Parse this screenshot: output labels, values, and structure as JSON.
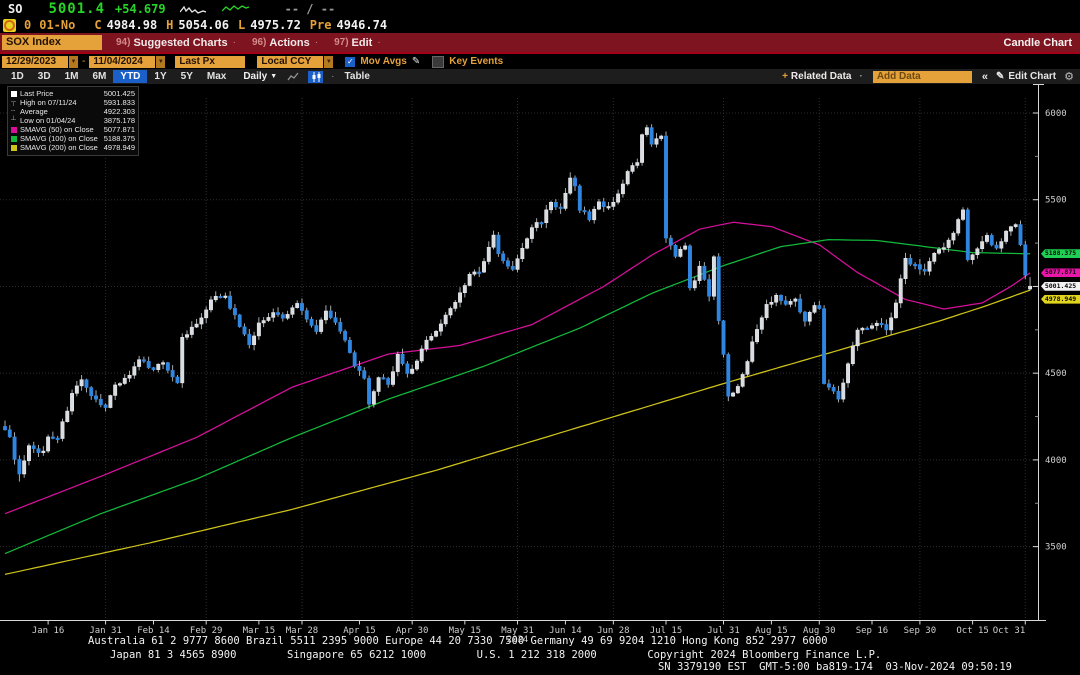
{
  "topbar": {
    "ticker": "SO",
    "price": "5001.4",
    "change": "+54.679",
    "na": "-- / --",
    "session": "0",
    "date_short": "01-No",
    "ohlc": [
      {
        "k": "C",
        "v": "4984.98"
      },
      {
        "k": "H",
        "v": "5054.06"
      },
      {
        "k": "L",
        "v": "4975.72"
      },
      {
        "k": "Pre",
        "v": "4946.74"
      }
    ],
    "spark_white": [
      [
        0,
        9
      ],
      [
        4,
        4
      ],
      [
        6,
        8
      ],
      [
        9,
        5
      ],
      [
        12,
        9
      ],
      [
        15,
        7
      ],
      [
        18,
        10
      ],
      [
        23,
        8
      ],
      [
        26,
        9
      ]
    ],
    "spark_green": [
      [
        0,
        8
      ],
      [
        4,
        4
      ],
      [
        8,
        7
      ],
      [
        12,
        3
      ],
      [
        16,
        6
      ],
      [
        20,
        3
      ],
      [
        24,
        5
      ],
      [
        27,
        4
      ]
    ]
  },
  "menubar": {
    "security": "SOX Index",
    "items": [
      {
        "num": "94)",
        "label": "Suggested Charts"
      },
      {
        "num": "96)",
        "label": "Actions"
      },
      {
        "num": "97)",
        "label": "Edit"
      }
    ],
    "right": "Candle Chart"
  },
  "toolbar": {
    "date_from": "12/29/2023",
    "separator": "-",
    "date_to": "11/04/2024",
    "price_mode": "Last Px",
    "currency": "Local CCY",
    "mov_avgs": "Mov Avgs",
    "key_events": "Key Events"
  },
  "periodbar": {
    "periods": [
      "1D",
      "3D",
      "1M",
      "6M",
      "YTD",
      "1Y",
      "5Y",
      "Max"
    ],
    "selected": "YTD",
    "frequency": "Daily",
    "table": "Table",
    "related_data": "Related Data",
    "add_data": "Add Data",
    "collapse": "«",
    "edit_chart": "Edit Chart"
  },
  "legend": {
    "items": [
      {
        "marker": "square",
        "swatch": "#ffffff",
        "label": "Last Price",
        "value": "5001.425"
      },
      {
        "marker": "high",
        "swatch": "",
        "label": "High on 07/11/24",
        "value": "5931.833"
      },
      {
        "marker": "avg",
        "swatch": "",
        "label": "Average",
        "value": "4922.303"
      },
      {
        "marker": "low",
        "swatch": "",
        "label": "Low on 01/04/24",
        "value": "3875.178"
      },
      {
        "marker": "square",
        "swatch": "#d6109b",
        "label": "SMAVG (50)  on Close",
        "value": "5077.871"
      },
      {
        "marker": "square",
        "swatch": "#12b93a",
        "label": "SMAVG (100)  on Close",
        "value": "5188.375"
      },
      {
        "marker": "square",
        "swatch": "#cfc419",
        "label": "SMAVG (200)  on Close",
        "value": "4978.949"
      }
    ]
  },
  "chart_data": {
    "type": "candlestick",
    "title": "SOX Index — 12/29/2023 - 11/04/2024 — Daily Candle Chart",
    "ylim": [
      3080,
      6170
    ],
    "grid": true,
    "y_ticks": [
      {
        "value": 6000,
        "label": "6000"
      },
      {
        "value": 5500,
        "label": "5500"
      },
      {
        "value": 5000,
        "label": ""
      },
      {
        "value": 4500,
        "label": "4500"
      },
      {
        "value": 4000,
        "label": "4000"
      },
      {
        "value": 3500,
        "label": "3500"
      }
    ],
    "x_ticks": [
      {
        "label": "Jan 16",
        "day": 9,
        "grid": false
      },
      {
        "label": "Jan 31",
        "day": 21,
        "grid": true
      },
      {
        "label": "Feb 14",
        "day": 31,
        "grid": false
      },
      {
        "label": "Feb 29",
        "day": 42,
        "grid": true
      },
      {
        "label": "Mar 15",
        "day": 53,
        "grid": false
      },
      {
        "label": "Mar 28",
        "day": 62,
        "grid": true
      },
      {
        "label": "Apr 15",
        "day": 74,
        "grid": false
      },
      {
        "label": "Apr 30",
        "day": 85,
        "grid": true
      },
      {
        "label": "May 15",
        "day": 96,
        "grid": false
      },
      {
        "label": "May 31",
        "day": 107,
        "grid": true
      },
      {
        "label": "Jun 14",
        "day": 117,
        "grid": false
      },
      {
        "label": "Jun 28",
        "day": 127,
        "grid": true
      },
      {
        "label": "Jul 15",
        "day": 138,
        "grid": false
      },
      {
        "label": "Jul 31",
        "day": 150,
        "grid": true
      },
      {
        "label": "Aug 15",
        "day": 160,
        "grid": false
      },
      {
        "label": "Aug 30",
        "day": 170,
        "grid": true
      },
      {
        "label": "Sep 16",
        "day": 181,
        "grid": false
      },
      {
        "label": "Sep 30",
        "day": 191,
        "grid": true
      },
      {
        "label": "Oct 15",
        "day": 202,
        "grid": false
      },
      {
        "label": "Oct 31",
        "day": 213,
        "grid": true
      }
    ],
    "year_label": "2024",
    "days": 215,
    "close_anchors": [
      [
        0,
        4186
      ],
      [
        1,
        4120
      ],
      [
        2,
        4015
      ],
      [
        3,
        3909
      ],
      [
        5,
        4070
      ],
      [
        8,
        4044
      ],
      [
        9,
        4136
      ],
      [
        11,
        4130
      ],
      [
        13,
        4290
      ],
      [
        14,
        4390
      ],
      [
        16,
        4450
      ],
      [
        18,
        4360
      ],
      [
        20,
        4330
      ],
      [
        21,
        4306
      ],
      [
        23,
        4430
      ],
      [
        26,
        4490
      ],
      [
        28,
        4570
      ],
      [
        31,
        4530
      ],
      [
        33,
        4560
      ],
      [
        36,
        4450
      ],
      [
        37,
        4700
      ],
      [
        41,
        4810
      ],
      [
        43,
        4920
      ],
      [
        46,
        4957
      ],
      [
        47,
        4880
      ],
      [
        51,
        4670
      ],
      [
        53,
        4780
      ],
      [
        56,
        4850
      ],
      [
        58,
        4810
      ],
      [
        61,
        4905
      ],
      [
        63,
        4820
      ],
      [
        65,
        4740
      ],
      [
        67,
        4870
      ],
      [
        69,
        4790
      ],
      [
        71,
        4680
      ],
      [
        73,
        4550
      ],
      [
        75,
        4460
      ],
      [
        76,
        4310
      ],
      [
        78,
        4480
      ],
      [
        80,
        4440
      ],
      [
        82,
        4600
      ],
      [
        84,
        4490
      ],
      [
        86,
        4560
      ],
      [
        88,
        4700
      ],
      [
        90,
        4740
      ],
      [
        92,
        4830
      ],
      [
        95,
        4960
      ],
      [
        97,
        5070
      ],
      [
        99,
        5080
      ],
      [
        100,
        5140
      ],
      [
        102,
        5300
      ],
      [
        103,
        5180
      ],
      [
        106,
        5090
      ],
      [
        108,
        5220
      ],
      [
        110,
        5340
      ],
      [
        112,
        5380
      ],
      [
        114,
        5490
      ],
      [
        116,
        5440
      ],
      [
        118,
        5620
      ],
      [
        119,
        5570
      ],
      [
        120,
        5450
      ],
      [
        122,
        5390
      ],
      [
        124,
        5490
      ],
      [
        126,
        5450
      ],
      [
        128,
        5540
      ],
      [
        130,
        5660
      ],
      [
        132,
        5710
      ],
      [
        133,
        5870
      ],
      [
        134,
        5905
      ],
      [
        135,
        5820
      ],
      [
        137,
        5865
      ],
      [
        138,
        5290
      ],
      [
        140,
        5180
      ],
      [
        142,
        5230
      ],
      [
        143,
        4980
      ],
      [
        145,
        5110
      ],
      [
        147,
        4950
      ],
      [
        148,
        5180
      ],
      [
        149,
        4810
      ],
      [
        150,
        4608
      ],
      [
        151,
        4360
      ],
      [
        153,
        4430
      ],
      [
        155,
        4580
      ],
      [
        157,
        4760
      ],
      [
        159,
        4890
      ],
      [
        161,
        4950
      ],
      [
        163,
        4890
      ],
      [
        165,
        4940
      ],
      [
        167,
        4790
      ],
      [
        169,
        4900
      ],
      [
        170,
        4880
      ],
      [
        171,
        4450
      ],
      [
        173,
        4390
      ],
      [
        174,
        4345
      ],
      [
        176,
        4550
      ],
      [
        178,
        4750
      ],
      [
        180,
        4770
      ],
      [
        182,
        4800
      ],
      [
        184,
        4750
      ],
      [
        186,
        4910
      ],
      [
        188,
        5160
      ],
      [
        190,
        5120
      ],
      [
        192,
        5090
      ],
      [
        194,
        5200
      ],
      [
        196,
        5220
      ],
      [
        198,
        5310
      ],
      [
        200,
        5440
      ],
      [
        201,
        5160
      ],
      [
        203,
        5230
      ],
      [
        205,
        5290
      ],
      [
        207,
        5210
      ],
      [
        209,
        5320
      ],
      [
        211,
        5350
      ],
      [
        212,
        5230
      ],
      [
        213,
        5055
      ],
      [
        214,
        5001.425
      ]
    ],
    "last_candle": {
      "open": 4984.98,
      "high": 5054.06,
      "low": 4975.72,
      "close": 5001.425
    },
    "low_marker": {
      "day": 3,
      "low": 3875.178
    },
    "high_marker": {
      "day": 134,
      "high": 5931.833
    },
    "price_tags": [
      {
        "value": "5188.375",
        "price": 5188.375,
        "color": "#1fd054",
        "offset": 0
      },
      {
        "value": "5077.871",
        "price": 5077.871,
        "color": "#e816a9",
        "offset": 0
      },
      {
        "value": "5001.425",
        "price": 5001.425,
        "color": "#f2f2f2",
        "offset": 0
      },
      {
        "value": "4978.949",
        "price": 4978.949,
        "color": "#e0d41c",
        "offset": 9
      }
    ],
    "ma_lines": [
      {
        "name": "SMAVG (50) on Close",
        "color": "#d6109b",
        "points": [
          [
            0,
            3690
          ],
          [
            20,
            3905
          ],
          [
            40,
            4130
          ],
          [
            60,
            4420
          ],
          [
            80,
            4610
          ],
          [
            95,
            4660
          ],
          [
            110,
            4780
          ],
          [
            125,
            5000
          ],
          [
            135,
            5180
          ],
          [
            145,
            5330
          ],
          [
            152,
            5370
          ],
          [
            160,
            5345
          ],
          [
            170,
            5240
          ],
          [
            178,
            5080
          ],
          [
            188,
            4925
          ],
          [
            196,
            4870
          ],
          [
            204,
            4905
          ],
          [
            210,
            5000
          ],
          [
            214,
            5078
          ]
        ]
      },
      {
        "name": "SMAVG (100) on Close",
        "color": "#12b93a",
        "points": [
          [
            0,
            3460
          ],
          [
            20,
            3690
          ],
          [
            40,
            3890
          ],
          [
            60,
            4130
          ],
          [
            80,
            4350
          ],
          [
            100,
            4540
          ],
          [
            120,
            4760
          ],
          [
            135,
            4960
          ],
          [
            150,
            5120
          ],
          [
            162,
            5230
          ],
          [
            172,
            5270
          ],
          [
            182,
            5265
          ],
          [
            192,
            5230
          ],
          [
            202,
            5195
          ],
          [
            214,
            5188
          ]
        ]
      },
      {
        "name": "SMAVG (200) on Close",
        "color": "#cfc419",
        "points": [
          [
            0,
            3340
          ],
          [
            30,
            3520
          ],
          [
            60,
            3715
          ],
          [
            90,
            3940
          ],
          [
            120,
            4190
          ],
          [
            150,
            4440
          ],
          [
            175,
            4640
          ],
          [
            195,
            4800
          ],
          [
            205,
            4890
          ],
          [
            214,
            4979
          ]
        ]
      }
    ],
    "up_color": "#d9dde1",
    "down_color": "#2f86e0",
    "wick_color": "#b9bdc1",
    "grid_color": "#2d2d2d",
    "axis_color": "#d8d8d8",
    "label_color": "#cfcfcf"
  },
  "footer": {
    "line1": "Australia 61 2 9777 8600 Brazil 5511 2395 9000 Europe 44 20 7330 7500 Germany 49 69 9204 1210 Hong Kong 852 2977 6000",
    "line2": "Japan 81 3 4565 8900        Singapore 65 6212 1000        U.S. 1 212 318 2000        Copyright 2024 Bloomberg Finance L.P.",
    "line3": "SN 3379190 EST  GMT-5:00 ba819-174  03-Nov-2024 09:50:19"
  }
}
